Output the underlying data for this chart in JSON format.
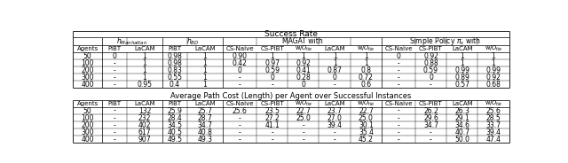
{
  "title1": "Success Rate",
  "title2": "Average Path Cost (Length) per Agent over Successful Instances",
  "sub_header_display": [
    "Agents",
    "PIBT",
    "LaCAM",
    "PIBT",
    "LaCAM",
    "CS-Naive",
    "CS-PIBT",
    "w/$O_{tie}$",
    "LaCAM",
    "w/$O_{tie}$",
    "CS-Naive",
    "CS-PIBT",
    "LaCAM",
    "w/$O_{tie}$"
  ],
  "success_rows": [
    [
      "50",
      "0",
      "1",
      "0.98",
      "1",
      "0.90",
      "1",
      "1",
      "1",
      "1",
      "0",
      "0.92",
      "1",
      "1"
    ],
    [
      "100",
      "-",
      "1",
      "0.98",
      "1",
      "0.42",
      "0.97",
      "0.92",
      "1",
      "1",
      "-",
      "0.88",
      "1",
      "1"
    ],
    [
      "200",
      "-",
      "1",
      "0.83",
      "1",
      "0",
      "0.59",
      "0.41",
      "0.87",
      "0.8",
      "-",
      "0.59",
      "0.99",
      "0.99"
    ],
    [
      "300",
      "-",
      "1",
      "0.55",
      "1",
      "-",
      "0",
      "0.28",
      "0",
      "0.72",
      "-",
      "0",
      "0.89",
      "0.92"
    ],
    [
      "400",
      "-",
      "0.95",
      "0.4",
      "1",
      "-",
      "-",
      "0",
      "-",
      "0.6",
      "-",
      "-",
      "0.57",
      "0.68"
    ]
  ],
  "cost_rows": [
    [
      "50",
      "-",
      "132",
      "25.9",
      "25.7",
      "25.6",
      "23.5",
      "22.7",
      "23.7",
      "22.7",
      "-",
      "26.2",
      "26.3",
      "25.6"
    ],
    [
      "100",
      "-",
      "232",
      "28.4",
      "28.7",
      "-",
      "27.2",
      "25.0",
      "27.0",
      "25.0",
      "-",
      "29.6",
      "29.1",
      "28.5"
    ],
    [
      "200",
      "-",
      "402",
      "34.5",
      "34.7",
      "-",
      "41.1",
      "-",
      "39.4",
      "30.1",
      "-",
      "34.7",
      "34.6",
      "33.7"
    ],
    [
      "300",
      "-",
      "617",
      "40.5",
      "40.8",
      "-",
      "-",
      "-",
      "-",
      "35.4",
      "-",
      "-",
      "40.7",
      "39.4"
    ],
    [
      "400",
      "-",
      "907",
      "49.5",
      "49.3",
      "-",
      "-",
      "-",
      "-",
      "45.2",
      "-",
      "-",
      "50.0",
      "47.4"
    ]
  ],
  "col_widths_rel": [
    26,
    22,
    32,
    22,
    32,
    30,
    28,
    28,
    28,
    28,
    30,
    28,
    28,
    28
  ],
  "bg_color": "#ffffff",
  "border_color": "#000000",
  "text_color": "#000000",
  "groups": [
    [
      0,
      0,
      ""
    ],
    [
      1,
      2,
      "h_Manhattan"
    ],
    [
      3,
      4,
      "h_BD"
    ],
    [
      5,
      9,
      "MAGAT with"
    ],
    [
      10,
      13,
      "Simple Policy pi_s with"
    ]
  ]
}
